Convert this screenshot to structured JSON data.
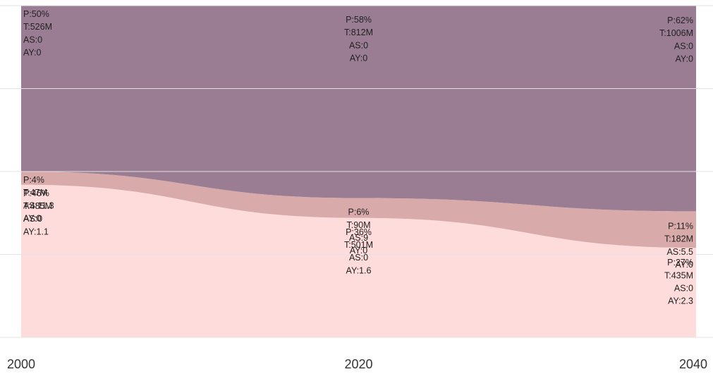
{
  "chart_data": {
    "type": "area",
    "stacked": true,
    "normalized": true,
    "x": [
      "2000",
      "2020",
      "2040"
    ],
    "series": [
      {
        "color": "#fddcdb",
        "points": [
          {
            "label": [
              "P:46%",
              "T:485M",
              "AS:0",
              "AY:1.1"
            ]
          },
          {
            "label": [
              "P:36%",
              "T:501M",
              "AS:0",
              "AY:1.6"
            ]
          },
          {
            "label": [
              "P:27%",
              "T:435M",
              "AS:0",
              "AY:2.3"
            ]
          }
        ],
        "values": [
          46,
          36,
          27
        ]
      },
      {
        "color": "#d9aaaa",
        "points": [
          {
            "label": [
              "P:4%",
              "T:47M",
              "AS:11.3",
              "AY:0"
            ]
          },
          {
            "label": [
              "P:6%",
              "T:90M",
              "AS:9",
              "AY:0"
            ]
          },
          {
            "label": [
              "P:11%",
              "T:182M",
              "AS:5.5",
              "AY:0"
            ]
          }
        ],
        "values": [
          4,
          6,
          11
        ]
      },
      {
        "color": "#9a7d93",
        "points": [
          {
            "label": [
              "P:50%",
              "T:526M",
              "AS:0",
              "AY:0"
            ]
          },
          {
            "label": [
              "P:58%",
              "T:812M",
              "AS:0",
              "AY:0"
            ]
          },
          {
            "label": [
              "P:62%",
              "T:1006M",
              "AS:0",
              "AY:0"
            ]
          }
        ],
        "values": [
          50,
          58,
          62
        ]
      }
    ],
    "ylim": [
      0,
      100
    ],
    "grid": true,
    "legend": "none"
  }
}
